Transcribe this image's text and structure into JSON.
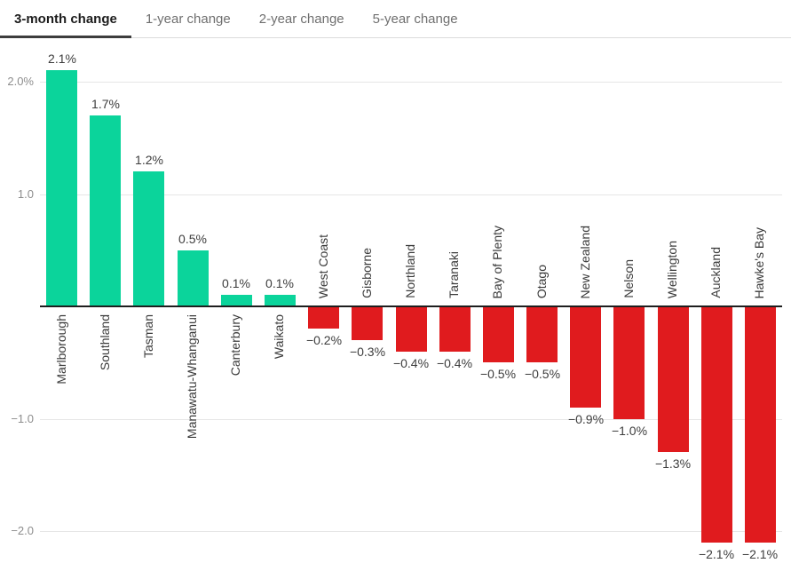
{
  "tabs": [
    {
      "label": "3-month change",
      "active": true
    },
    {
      "label": "1-year change",
      "active": false
    },
    {
      "label": "2-year change",
      "active": false
    },
    {
      "label": "5-year change",
      "active": false
    }
  ],
  "chart_data": {
    "type": "bar",
    "title": "",
    "xlabel": "",
    "ylabel": "",
    "categories": [
      "Marlborough",
      "Southland",
      "Tasman",
      "Manawatu-Whanganui",
      "Canterbury",
      "Waikato",
      "West Coast",
      "Gisborne",
      "Northland",
      "Taranaki",
      "Bay of Plenty",
      "Otago",
      "New Zealand",
      "Nelson",
      "Wellington",
      "Auckland",
      "Hawke's Bay"
    ],
    "values": [
      2.1,
      1.7,
      1.2,
      0.5,
      0.1,
      0.1,
      -0.2,
      -0.3,
      -0.4,
      -0.4,
      -0.5,
      -0.5,
      -0.9,
      -1.0,
      -1.3,
      -2.1,
      -2.1
    ],
    "point_labels": [
      "2.1%",
      "1.7%",
      "1.2%",
      "0.5%",
      "0.1%",
      "0.1%",
      "−0.2%",
      "−0.3%",
      "−0.4%",
      "−0.4%",
      "−0.5%",
      "−0.5%",
      "−0.9%",
      "−1.0%",
      "−1.3%",
      "−2.1%",
      "−2.1%"
    ],
    "yticks": [
      {
        "value": 2.0,
        "label": "2.0%"
      },
      {
        "value": 1.0,
        "label": "1.0"
      },
      {
        "value": -1.0,
        "label": "−1.0"
      },
      {
        "value": -2.0,
        "label": "−2.0"
      }
    ],
    "ylim": [
      -2.45,
      2.4
    ],
    "grid": true,
    "legend": false,
    "colors": {
      "positive": "#0bd49b",
      "negative": "#e01b1e",
      "axis": "#1e1e1e",
      "gridline": "#e6e6e6"
    }
  }
}
